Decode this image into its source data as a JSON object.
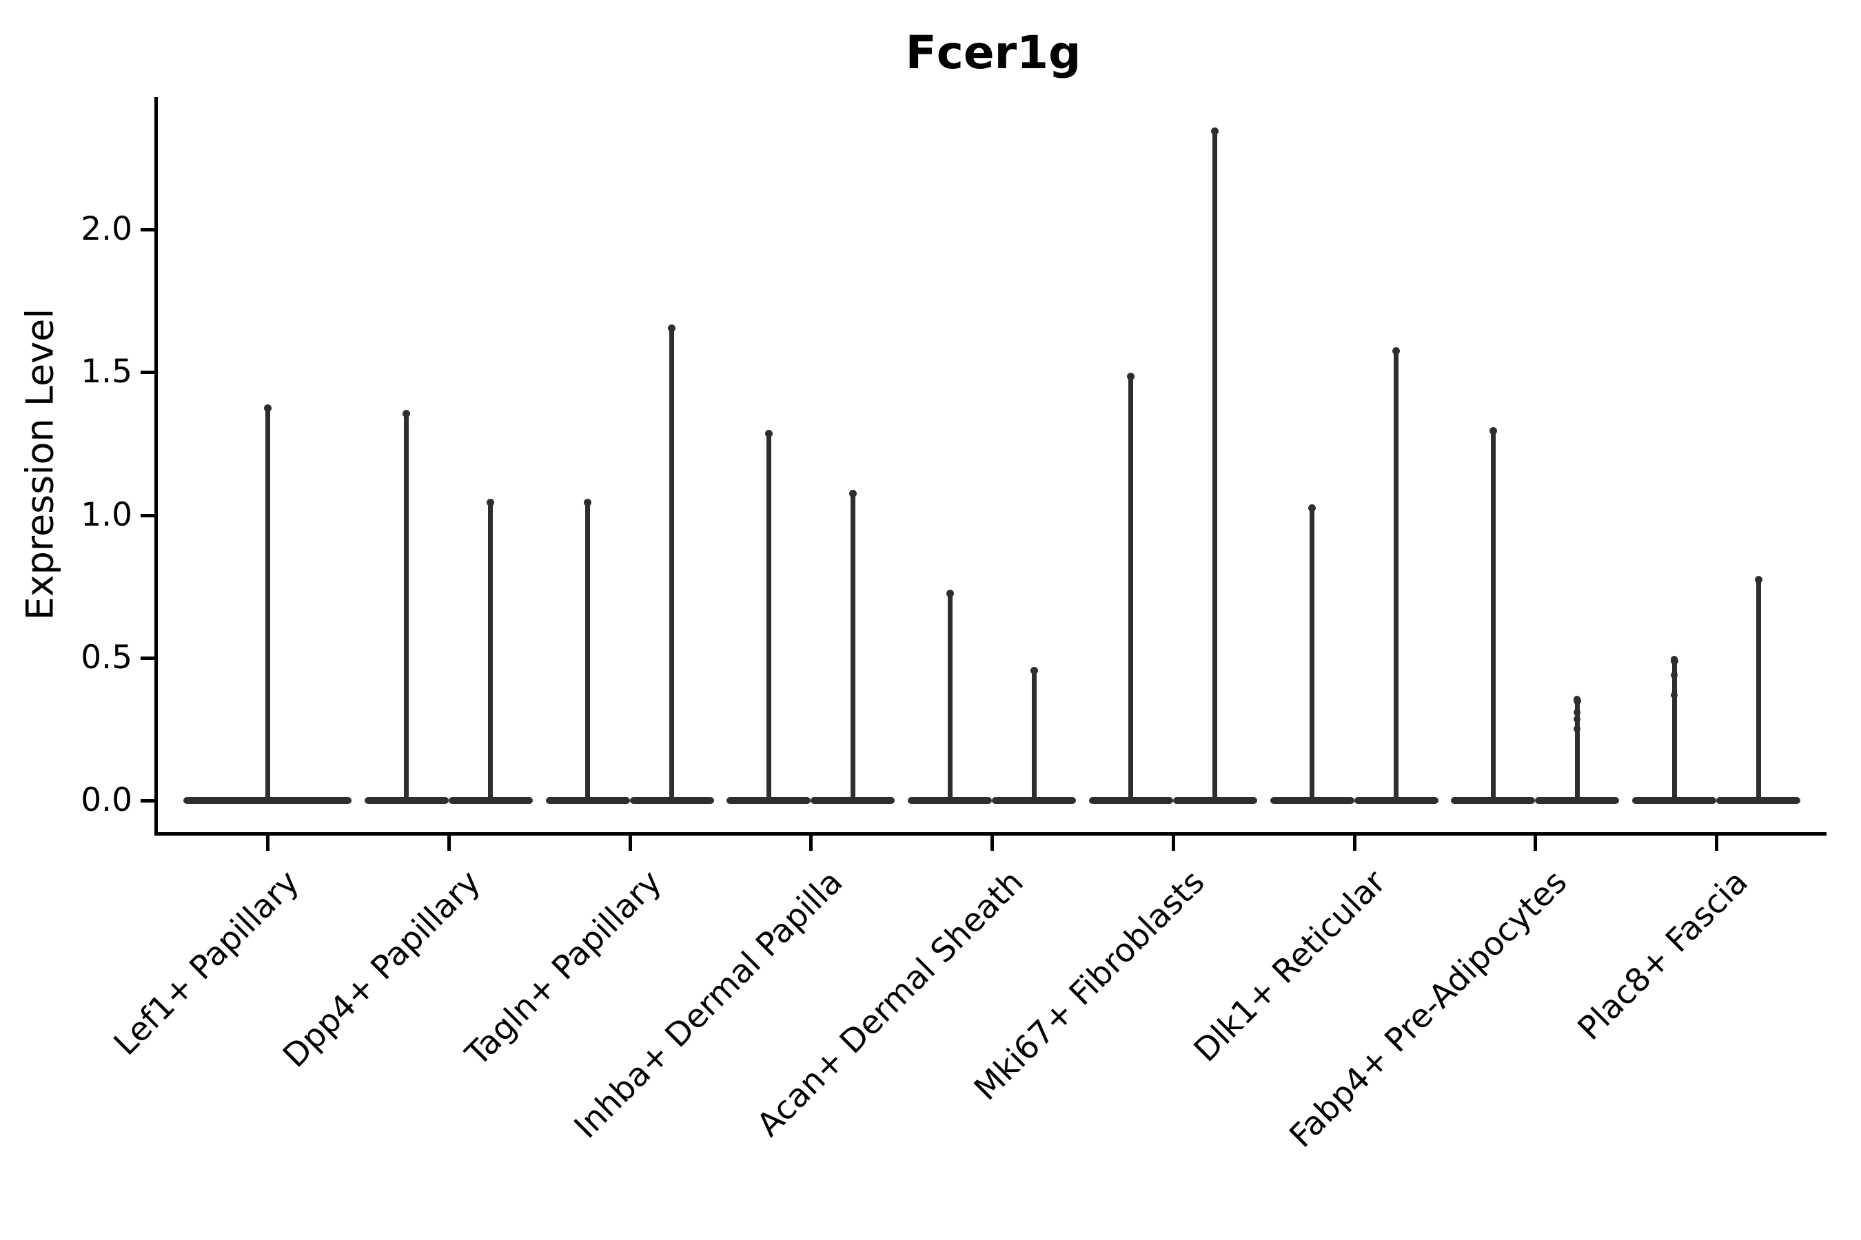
{
  "title": "Fcer1g",
  "y_axis": {
    "label": "Expression Level",
    "tick_labels": [
      "0.0",
      "0.5",
      "1.0",
      "1.5",
      "2.0"
    ],
    "limits": [
      -0.12,
      2.47
    ]
  },
  "x_axis": {
    "categories": [
      "Lef1+ Papillary",
      "Dpp4+ Papillary",
      "Tagln+ Papillary",
      "Inhba+ Dermal Papilla",
      "Acan+ Dermal Sheath",
      "Mki67+ Fibroblasts",
      "Dlk1+ Reticular",
      "Fabp4+ Pre-Adipocytes",
      "Plac8+ Fascia"
    ]
  },
  "style": {
    "violin_color": "#2e2e2e",
    "axis_color": "#000000",
    "background": "#ffffff"
  },
  "chart_data": {
    "type": "violin",
    "title": "Fcer1g",
    "xlabel": "",
    "ylabel": "Expression Level",
    "ylim": [
      -0.12,
      2.47
    ],
    "yticks": [
      0.0,
      0.5,
      1.0,
      1.5,
      2.0
    ],
    "grid": false,
    "legend": false,
    "categories": [
      "Lef1+ Papillary",
      "Dpp4+ Papillary",
      "Tagln+ Papillary",
      "Inhba+ Dermal Papilla",
      "Acan+ Dermal Sheath",
      "Mki67+ Fibroblasts",
      "Dlk1+ Reticular",
      "Fabp4+ Pre-Adipocytes",
      "Plac8+ Fascia"
    ],
    "notes": "Each violin is a flat density mass at expression 0 with a thin tail (spike) reaching its maximum expression value. Categories 2-9 contain two side-by-side violins; category 1 has a single centered violin. Small stacked points are visible on the Fabp4+ right tail and Plac8+ left tail.",
    "series": [
      {
        "category": "Lef1+ Papillary",
        "violins": [
          {
            "offset_frac": 0,
            "span_frac": 1,
            "min": 0.0,
            "max": 1.38,
            "points": []
          }
        ]
      },
      {
        "category": "Dpp4+ Papillary",
        "violins": [
          {
            "offset_frac": -0.25,
            "span_frac": 0.5,
            "min": 0.0,
            "max": 1.36,
            "points": []
          },
          {
            "offset_frac": 0.25,
            "span_frac": 0.5,
            "min": 0.0,
            "max": 1.05,
            "points": []
          }
        ]
      },
      {
        "category": "Tagln+ Papillary",
        "violins": [
          {
            "offset_frac": -0.25,
            "span_frac": 0.5,
            "min": 0.0,
            "max": 1.05,
            "points": []
          },
          {
            "offset_frac": 0.25,
            "span_frac": 0.5,
            "min": 0.0,
            "max": 1.66,
            "points": []
          }
        ]
      },
      {
        "category": "Inhba+ Dermal Papilla",
        "violins": [
          {
            "offset_frac": -0.25,
            "span_frac": 0.5,
            "min": 0.0,
            "max": 1.29,
            "points": []
          },
          {
            "offset_frac": 0.25,
            "span_frac": 0.5,
            "min": 0.0,
            "max": 1.08,
            "points": []
          }
        ]
      },
      {
        "category": "Acan+ Dermal Sheath",
        "violins": [
          {
            "offset_frac": -0.25,
            "span_frac": 0.5,
            "min": 0.0,
            "max": 0.73,
            "points": []
          },
          {
            "offset_frac": 0.25,
            "span_frac": 0.5,
            "min": 0.0,
            "max": 0.46,
            "points": []
          }
        ]
      },
      {
        "category": "Mki67+ Fibroblasts",
        "violins": [
          {
            "offset_frac": -0.25,
            "span_frac": 0.5,
            "min": 0.0,
            "max": 1.49,
            "points": []
          },
          {
            "offset_frac": 0.25,
            "span_frac": 0.5,
            "min": 0.0,
            "max": 2.35,
            "points": []
          }
        ]
      },
      {
        "category": "Dlk1+ Reticular",
        "violins": [
          {
            "offset_frac": -0.25,
            "span_frac": 0.5,
            "min": 0.0,
            "max": 1.03,
            "points": []
          },
          {
            "offset_frac": 0.25,
            "span_frac": 0.5,
            "min": 0.0,
            "max": 1.58,
            "points": []
          }
        ]
      },
      {
        "category": "Fabp4+ Pre-Adipocytes",
        "violins": [
          {
            "offset_frac": -0.25,
            "span_frac": 0.5,
            "min": 0.0,
            "max": 1.3,
            "points": []
          },
          {
            "offset_frac": 0.25,
            "span_frac": 0.5,
            "min": 0.0,
            "max": 0.355,
            "points": [
              0.355,
              0.31,
              0.285,
              0.25
            ]
          }
        ]
      },
      {
        "category": "Plac8+ Fascia",
        "violins": [
          {
            "offset_frac": -0.25,
            "span_frac": 0.5,
            "min": 0.0,
            "max": 0.495,
            "points": [
              0.495,
              0.44,
              0.37
            ]
          },
          {
            "offset_frac": 0.25,
            "span_frac": 0.5,
            "min": 0.0,
            "max": 0.78,
            "points": []
          }
        ]
      }
    ]
  }
}
